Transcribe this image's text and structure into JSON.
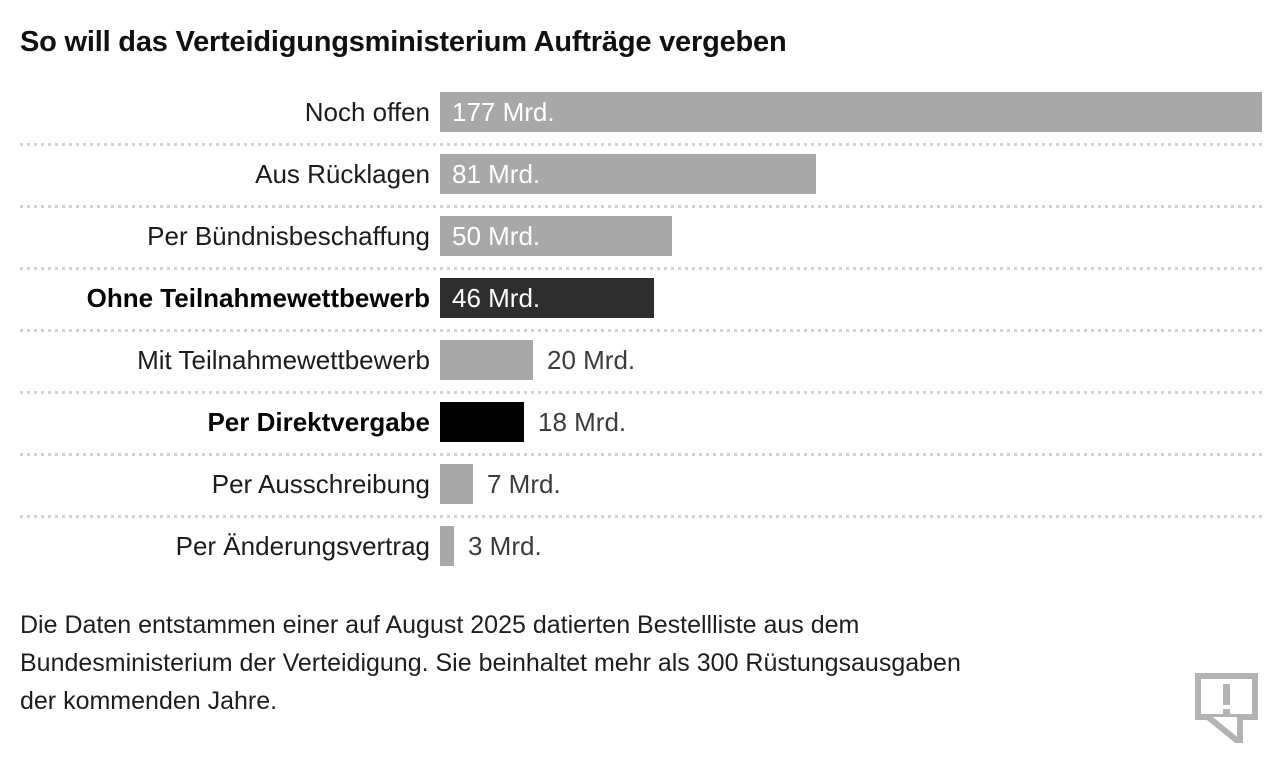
{
  "page": {
    "title": "So will das Verteidigungsministerium Aufträge vergeben"
  },
  "chart_data": {
    "type": "bar",
    "orientation": "horizontal",
    "title": "So will das Verteidigungsministerium Aufträge vergeben",
    "unit": "Mrd.",
    "xlim": [
      0,
      177
    ],
    "grid": false,
    "legend": false,
    "rows": [
      {
        "label": "Noch offen",
        "value": 177,
        "value_label": "177 Mrd.",
        "emphasis": false,
        "bar_color": "#a8a8a8",
        "value_inside": true
      },
      {
        "label": "Aus Rücklagen",
        "value": 81,
        "value_label": "81 Mrd.",
        "emphasis": false,
        "bar_color": "#a8a8a8",
        "value_inside": true
      },
      {
        "label": "Per Bündnisbeschaffung",
        "value": 50,
        "value_label": "50 Mrd.",
        "emphasis": false,
        "bar_color": "#a8a8a8",
        "value_inside": true
      },
      {
        "label": "Ohne Teilnahmewettbewerb",
        "value": 46,
        "value_label": "46 Mrd.",
        "emphasis": true,
        "bar_color": "#2e2e2e",
        "value_inside": true
      },
      {
        "label": "Mit Teilnahmewettbewerb",
        "value": 20,
        "value_label": "20 Mrd.",
        "emphasis": false,
        "bar_color": "#a8a8a8",
        "value_inside": false
      },
      {
        "label": "Per Direktvergabe",
        "value": 18,
        "value_label": "18 Mrd.",
        "emphasis": true,
        "bar_color": "#000000",
        "value_inside": false
      },
      {
        "label": "Per Ausschreibung",
        "value": 7,
        "value_label": "7 Mrd.",
        "emphasis": false,
        "bar_color": "#a8a8a8",
        "value_inside": false
      },
      {
        "label": "Per Änderungsvertrag",
        "value": 3,
        "value_label": "3 Mrd.",
        "emphasis": false,
        "bar_color": "#a8a8a8",
        "value_inside": false
      }
    ]
  },
  "footer": {
    "lines": [
      "Die Daten entstammen einer auf August 2025 datierten Bestellliste aus dem",
      "Bundesministerium der Verteidigung. Sie beinhaltet mehr als 300 Rüstungsausgaben",
      "der kommenden Jahre."
    ]
  },
  "icon": {
    "name": "feedback-speech-bubble-exclamation",
    "color": "#b3b3b3"
  },
  "colors": {
    "bar_gray": "#a8a8a8",
    "bar_dark": "#2e2e2e",
    "bar_black": "#000000",
    "value_inside_text": "#ffffff",
    "value_outside_text": "#3c3c3c",
    "separator": "#d3d3d3",
    "title_text": "#111111",
    "label_text": "#1c1c1c",
    "footer_text": "#1e1e1e",
    "icon": "#b3b3b3",
    "background": "#ffffff"
  }
}
